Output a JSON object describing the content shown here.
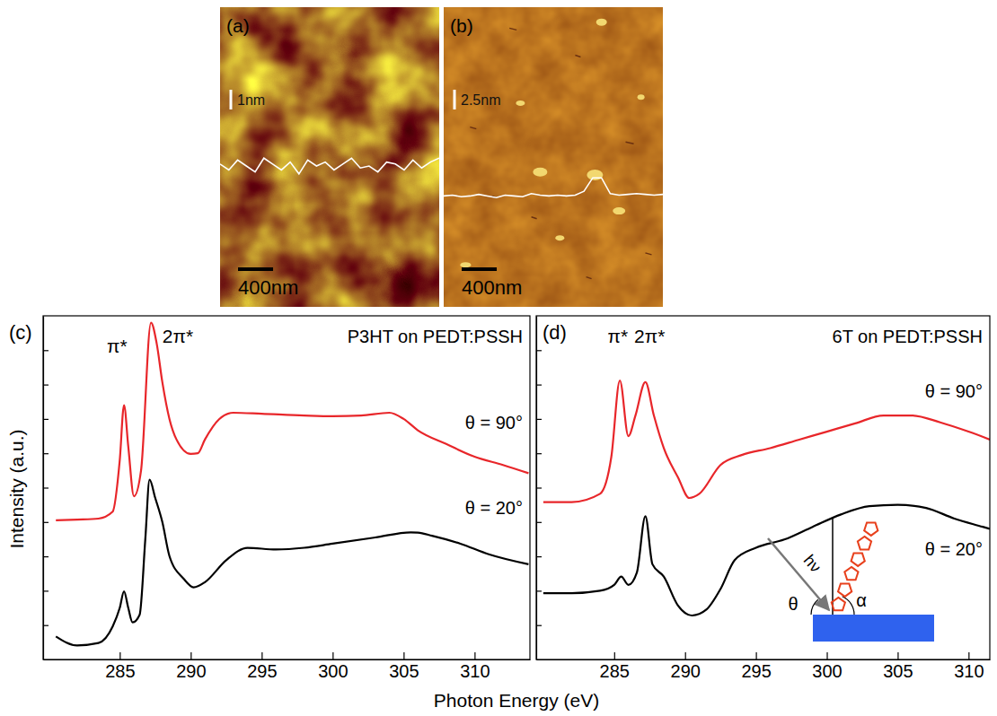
{
  "figure": {
    "x_label": "Photon Energy (eV)",
    "y_label": "Intensity (a.u.)"
  },
  "images": [
    {
      "panel_label": "(a)",
      "width_nm": 2500,
      "scale_bar": {
        "value": 400,
        "label": "400nm"
      },
      "height_bar": {
        "value": 1,
        "label": "1nm"
      },
      "profile_x": [
        0,
        100,
        200,
        300,
        400,
        500,
        600,
        700,
        800,
        900,
        1000,
        1100,
        1200,
        1300,
        1400,
        1500,
        1600,
        1700,
        1800,
        1900,
        2000,
        2100,
        2200,
        2300,
        2400,
        2500
      ],
      "profile": [
        0.1,
        -0.2,
        0.3,
        0.0,
        -0.3,
        0.4,
        0.1,
        -0.2,
        0.2,
        -0.4,
        0.3,
        0.0,
        0.2,
        -0.2,
        0.1,
        0.4,
        -0.1,
        0.0,
        -0.3,
        0.2,
        0.1,
        -0.2,
        0.3,
        -0.1,
        0.2,
        0.4
      ]
    },
    {
      "panel_label": "(b)",
      "width_nm": 2500,
      "scale_bar": {
        "value": 400,
        "label": "400nm"
      },
      "height_bar": {
        "value": 2.5,
        "label": "2.5nm"
      },
      "profile_x": [
        0,
        100,
        200,
        300,
        400,
        500,
        600,
        700,
        800,
        900,
        1000,
        1100,
        1200,
        1300,
        1400,
        1500,
        1600,
        1700,
        1800,
        1900,
        2000,
        2100,
        2200,
        2300,
        2400,
        2500
      ],
      "profile": [
        0.0,
        0.1,
        -0.1,
        0.0,
        0.2,
        0.0,
        -0.2,
        0.1,
        0.0,
        -0.1,
        0.3,
        0.1,
        0.0,
        0.1,
        0.0,
        0.1,
        0.6,
        2.3,
        2.3,
        0.3,
        0.1,
        0.2,
        0.3,
        0.2,
        0.1,
        0.2
      ]
    }
  ],
  "chart_data": [
    {
      "type": "line",
      "panel_label": "(c)",
      "title": "P3HT on PEDT:PSSH",
      "annotations": [
        "π*",
        "2π*"
      ],
      "xlim": [
        279.6,
        313.9
      ],
      "xticks": [
        285,
        290,
        295,
        300,
        305,
        310
      ],
      "ylim": [
        0,
        10
      ],
      "yticks": [
        1,
        2,
        3,
        4,
        5,
        6,
        7,
        8,
        9
      ],
      "tick_labels": "x",
      "series": [
        {
          "name": "θ = 90°",
          "color": "#e8262a",
          "x": [
            280.5,
            282,
            283.5,
            284.5,
            285,
            285.3,
            285.6,
            286,
            286.5,
            287.2,
            287.6,
            288,
            288.5,
            289,
            290,
            290.5,
            291,
            292,
            293,
            295,
            298,
            300,
            302,
            304,
            305,
            306,
            308,
            310,
            312,
            313.8
          ],
          "values": [
            4.05,
            4.07,
            4.1,
            4.3,
            5.8,
            7.4,
            6.2,
            4.75,
            5.5,
            9.8,
            9.2,
            8.07,
            7.0,
            6.4,
            5.98,
            6.0,
            6.4,
            6.99,
            7.18,
            7.15,
            7.1,
            7.08,
            7.1,
            7.18,
            7.0,
            6.67,
            6.27,
            5.9,
            5.66,
            5.42
          ]
        },
        {
          "name": "θ = 20°",
          "color": "#000000",
          "x": [
            280.5,
            282,
            283.5,
            284.5,
            285,
            285.3,
            285.6,
            285.9,
            286.4,
            286.8,
            287.1,
            287.5,
            288,
            288.5,
            289.5,
            290.2,
            291,
            292.5,
            294,
            296,
            298,
            300,
            303,
            305.5,
            306,
            307,
            309,
            311,
            313.8
          ],
          "values": [
            0.67,
            0.41,
            0.48,
            0.96,
            1.5,
            1.98,
            1.5,
            1.08,
            1.3,
            3.5,
            5.23,
            4.7,
            4.0,
            3.01,
            2.35,
            2.1,
            2.25,
            2.89,
            3.25,
            3.2,
            3.25,
            3.37,
            3.55,
            3.7,
            3.69,
            3.6,
            3.37,
            3.06,
            2.77
          ]
        }
      ]
    },
    {
      "type": "line",
      "panel_label": "(d)",
      "title": "6T on PEDT:PSSH",
      "annotations": [
        "π*",
        "2π*"
      ],
      "inset": {
        "beam": "hν",
        "incidence_angle": "θ",
        "tilt_angle": "α"
      },
      "xlim": [
        279.5,
        311.5
      ],
      "xticks": [
        285,
        290,
        295,
        300,
        305,
        310
      ],
      "ylim": [
        0,
        10
      ],
      "yticks": [
        1,
        2,
        3,
        4,
        5,
        6,
        7,
        8,
        9
      ],
      "tick_labels": "x",
      "series": [
        {
          "name": "θ = 90°",
          "color": "#e8262a",
          "x": [
            280,
            282,
            284,
            284.8,
            285.4,
            286,
            286.5,
            287.2,
            287.8,
            288.5,
            289.5,
            290.3,
            291,
            292.5,
            294,
            296,
            298,
            300,
            302,
            304,
            306,
            308,
            310,
            311.5
          ],
          "values": [
            4.58,
            4.58,
            4.82,
            5.9,
            8.12,
            6.5,
            7.1,
            8.07,
            7.1,
            6.15,
            5.3,
            4.7,
            4.82,
            5.66,
            5.95,
            6.15,
            6.39,
            6.63,
            6.87,
            7.1,
            7.1,
            6.9,
            6.63,
            6.4
          ]
        },
        {
          "name": "θ = 20°",
          "color": "#000000",
          "x": [
            280,
            282,
            284,
            285,
            285.5,
            286,
            286.6,
            287.2,
            287.7,
            288.5,
            289.5,
            290.5,
            291.5,
            292.5,
            293.5,
            295,
            297,
            299,
            301,
            303,
            305,
            307,
            309,
            311,
            311.5
          ],
          "values": [
            1.93,
            1.93,
            2.0,
            2.17,
            2.41,
            2.17,
            2.53,
            4.17,
            2.77,
            2.41,
            1.57,
            1.28,
            1.45,
            2.05,
            2.89,
            3.25,
            3.49,
            3.86,
            4.22,
            4.46,
            4.5,
            4.41,
            4.1,
            3.86,
            3.8
          ]
        }
      ]
    }
  ]
}
